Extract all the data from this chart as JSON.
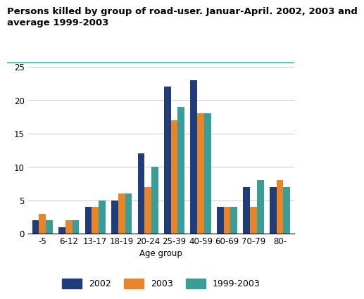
{
  "title": "Persons killed by group of road-user. Januar-April. 2002, 2003 and\naverage 1999-2003",
  "categories": [
    "-5",
    "6-12",
    "13-17",
    "18-19",
    "20-24",
    "25-39",
    "40-59",
    "60-69",
    "70-79",
    "80-"
  ],
  "series": {
    "2002": [
      2,
      1,
      4,
      5,
      12,
      22,
      23,
      4,
      7,
      7
    ],
    "2003": [
      3,
      2,
      4,
      6,
      7,
      17,
      18,
      4,
      4,
      8
    ],
    "1999-2003": [
      2,
      2,
      5,
      6,
      10,
      19,
      18,
      4,
      8,
      7
    ]
  },
  "colors": {
    "2002": "#1f3d7a",
    "2003": "#e8852a",
    "1999-2003": "#3a9e96"
  },
  "xlabel": "Age group",
  "ylim": [
    0,
    25
  ],
  "yticks": [
    0,
    5,
    10,
    15,
    20,
    25
  ],
  "title_fontsize": 9.5,
  "axis_fontsize": 8.5,
  "legend_fontsize": 9,
  "bar_width": 0.26,
  "background_color": "#ffffff",
  "grid_color": "#cccccc",
  "top_line_color": "#5bc8c8"
}
